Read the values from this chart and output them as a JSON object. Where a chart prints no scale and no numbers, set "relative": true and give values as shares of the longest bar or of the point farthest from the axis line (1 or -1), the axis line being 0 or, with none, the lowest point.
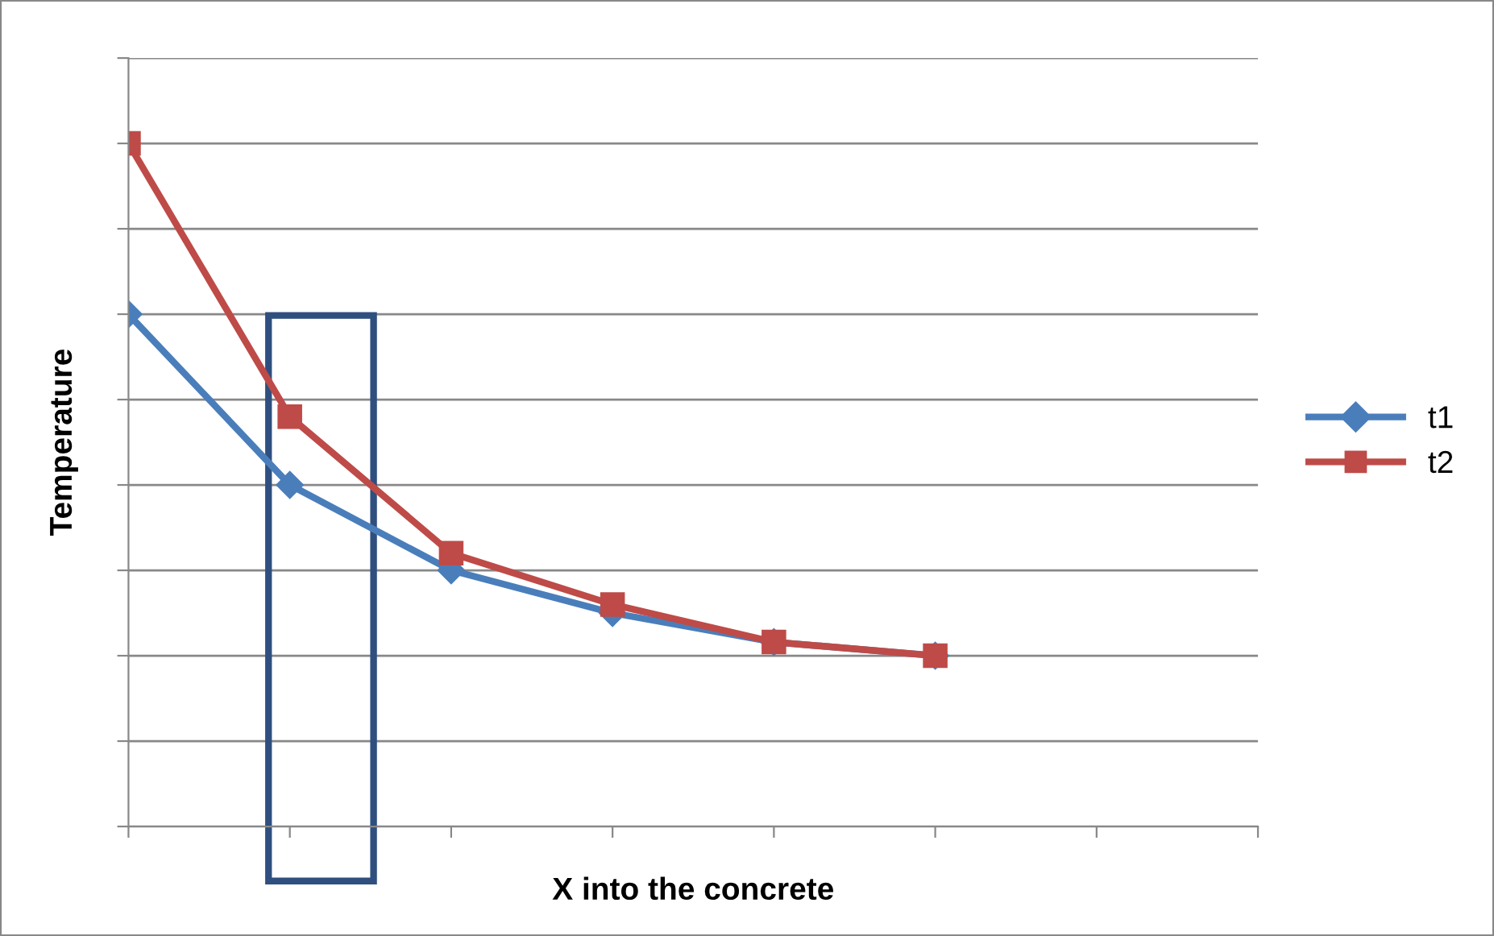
{
  "chart_data": {
    "type": "line",
    "xlabel": "X into the concrete",
    "ylabel": "Temperature",
    "categories": [
      null,
      null,
      null,
      null,
      null,
      null,
      null
    ],
    "relative": true,
    "grid": "y",
    "legend": "right",
    "series": [
      {
        "name": "t1",
        "color": "#4a7ebb",
        "marker": "diamond",
        "values": [
          0.75,
          0.5,
          0.375,
          0.3125,
          0.27,
          0.25,
          null
        ]
      },
      {
        "name": "t2",
        "color": "#be4b48",
        "marker": "square",
        "values": [
          1,
          0.6,
          0.4,
          0.325,
          0.27,
          0.25,
          null
        ]
      }
    ]
  }
}
